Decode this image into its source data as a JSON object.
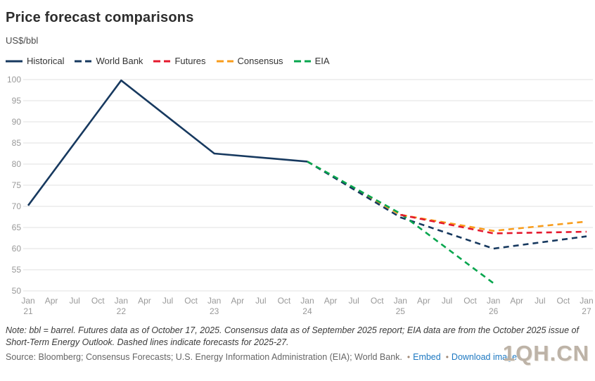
{
  "header": {
    "title": "Price forecast comparisons",
    "units_label": "US$/bbl"
  },
  "legend": [
    {
      "label": "Historical",
      "color": "#17395f",
      "dashed": false
    },
    {
      "label": "World Bank",
      "color": "#17395f",
      "dashed": true
    },
    {
      "label": "Futures",
      "color": "#e4192d",
      "dashed": true
    },
    {
      "label": "Consensus",
      "color": "#f89d1c",
      "dashed": true
    },
    {
      "label": "EIA",
      "color": "#07a64e",
      "dashed": true
    }
  ],
  "chart_data": {
    "type": "line",
    "title": "Price forecast comparisons",
    "ylabel": "US$/bbl",
    "ylim": [
      50,
      100
    ],
    "ytick_step": 5,
    "x_range_years": [
      2021,
      2027
    ],
    "x_tick_months": [
      "Jan",
      "Apr",
      "Jul",
      "Oct"
    ],
    "x_year_labels": [
      "21",
      "22",
      "23",
      "24",
      "25",
      "26",
      "27"
    ],
    "grid": true,
    "legend_position": "top-left",
    "axis_color": "#999999",
    "grid_color": "#e2e2e2",
    "series": [
      {
        "name": "Historical",
        "color": "#17395f",
        "dashed": false,
        "points": [
          [
            2021,
            70.2
          ],
          [
            2022,
            99.8
          ],
          [
            2023,
            82.5
          ],
          [
            2024,
            80.6
          ]
        ]
      },
      {
        "name": "World Bank",
        "color": "#17395f",
        "dashed": true,
        "points": [
          [
            2024,
            80.6
          ],
          [
            2025,
            67.4
          ],
          [
            2026,
            60.0
          ],
          [
            2027,
            62.9
          ]
        ]
      },
      {
        "name": "Futures",
        "color": "#e4192d",
        "dashed": true,
        "points": [
          [
            2025,
            68.0
          ],
          [
            2026,
            63.6
          ],
          [
            2027,
            64.0
          ]
        ]
      },
      {
        "name": "Consensus",
        "color": "#f89d1c",
        "dashed": true,
        "points": [
          [
            2024,
            80.6
          ],
          [
            2025,
            68.0
          ],
          [
            2026,
            64.2
          ],
          [
            2027,
            66.4
          ]
        ]
      },
      {
        "name": "EIA",
        "color": "#07a64e",
        "dashed": true,
        "points": [
          [
            2024,
            80.6
          ],
          [
            2025,
            68.3
          ],
          [
            2026,
            51.8
          ]
        ]
      }
    ]
  },
  "footer": {
    "note": "Note: bbl = barrel. Futures data as of October 17, 2025. Consensus data as of September 2025 report; EIA data are from the October 2025 issue of Short-Term Energy Outlook. Dashed lines indicate forecasts for 2025-27.",
    "source": "Source: Bloomberg; Consensus Forecasts; U.S. Energy Information Administration (EIA); World Bank.",
    "links": [
      {
        "label": "Embed"
      },
      {
        "label": "Download image"
      }
    ],
    "watermark": "1QH.CN"
  }
}
